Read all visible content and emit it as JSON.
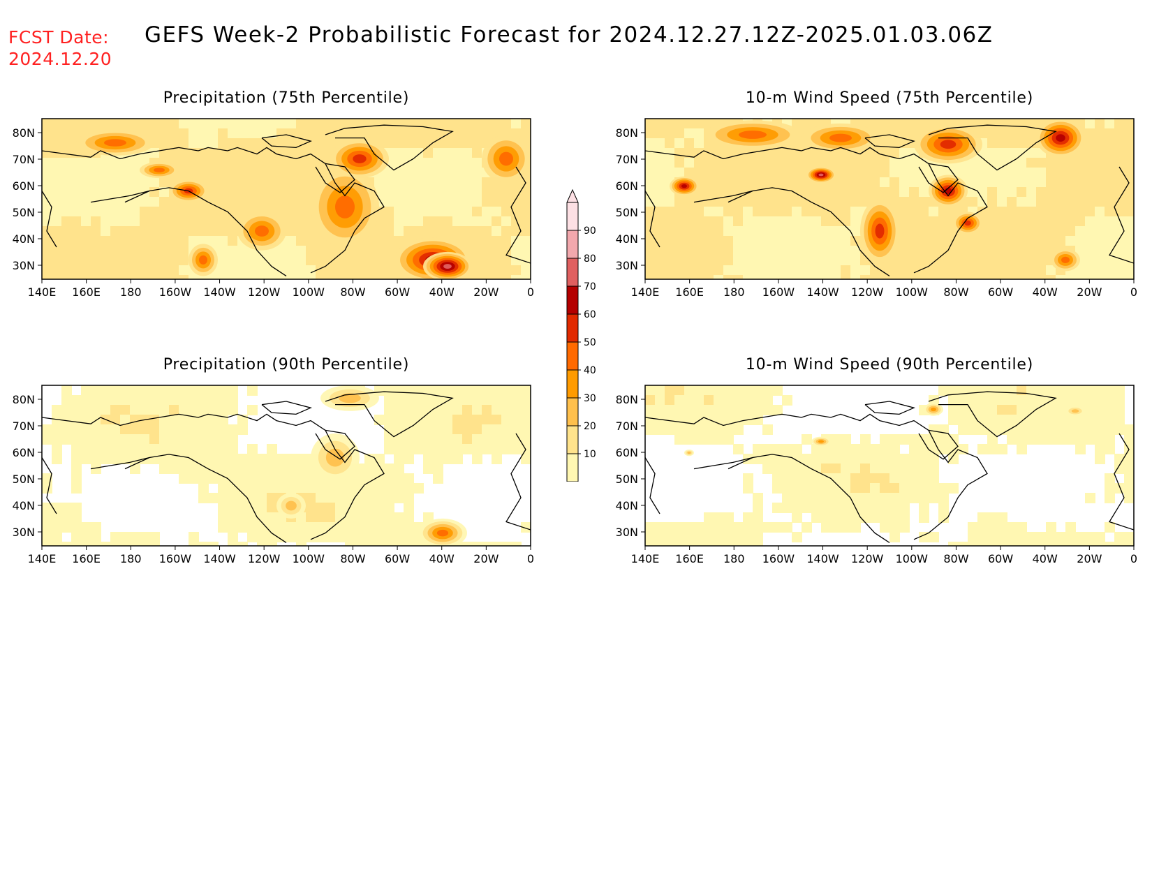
{
  "header": {
    "fcst_label": "FCST Date:",
    "fcst_date": "2024.12.20",
    "title": "GEFS Week-2 Probabilistic Forecast for 2024.12.27.12Z-2025.01.03.06Z"
  },
  "axes": {
    "lon_labels": [
      "140E",
      "160E",
      "180",
      "160W",
      "140W",
      "120W",
      "100W",
      "80W",
      "60W",
      "40W",
      "20W",
      "0"
    ],
    "lat_labels": [
      "80N",
      "70N",
      "60N",
      "50N",
      "40N",
      "30N"
    ]
  },
  "panels": [
    {
      "id": "precip75",
      "title": "Precipitation (75th Percentile)",
      "level": 0.75
    },
    {
      "id": "wind75",
      "title": "10-m Wind Speed (75th Percentile)",
      "level": 0.75
    },
    {
      "id": "precip90",
      "title": "Precipitation (90th Percentile)",
      "level": 0.25
    },
    {
      "id": "wind90",
      "title": "10-m Wind Speed (90th Percentile)",
      "level": 0.2
    }
  ],
  "colorbar": {
    "labels": [
      "10",
      "20",
      "30",
      "40",
      "50",
      "60",
      "70",
      "80",
      "90"
    ],
    "colors": [
      "#fff7b2",
      "#ffe38c",
      "#ffc04d",
      "#ff9b00",
      "#ff6a00",
      "#e12a00",
      "#b40000",
      "#e06060",
      "#f2a8ad",
      "#fde0e4"
    ]
  }
}
